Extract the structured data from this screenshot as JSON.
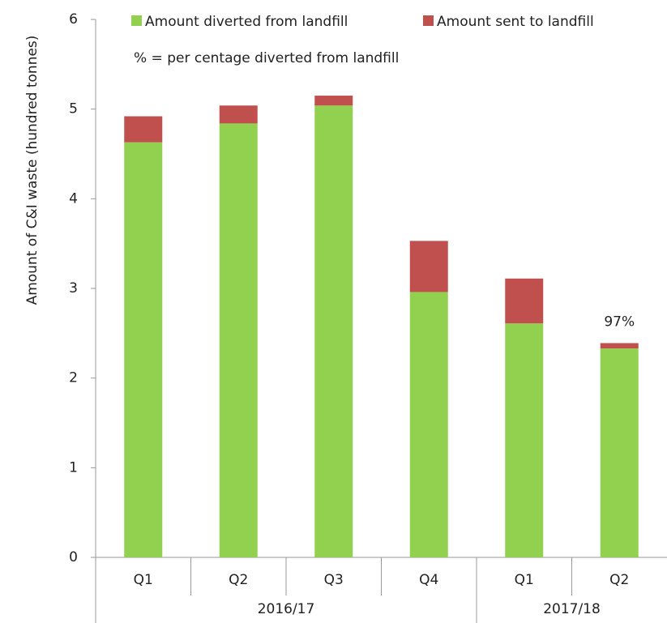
{
  "chart_data": {
    "type": "stacked_bar",
    "y_label": "Amount of C&I waste (hundred tonnes)",
    "note": "% = per centage diverted from landfill",
    "annotation": "97%",
    "groups": [
      {
        "name": "2016/17",
        "categories": [
          "Q1",
          "Q2",
          "Q3",
          "Q4"
        ]
      },
      {
        "name": "2017/18",
        "categories": [
          "Q1",
          "Q2"
        ]
      }
    ],
    "series": [
      {
        "name": "Amount diverted from landfill",
        "color": "#92d050",
        "values": [
          4.63,
          4.84,
          5.04,
          2.96,
          2.61,
          2.33
        ]
      },
      {
        "name": "Amount sent to landfill",
        "color": "#c0504d",
        "values": [
          0.29,
          0.2,
          0.11,
          0.57,
          0.5,
          0.06
        ]
      }
    ],
    "ylim": [
      0,
      6
    ],
    "yticks": [
      0,
      1,
      2,
      3,
      4,
      5,
      6
    ]
  }
}
